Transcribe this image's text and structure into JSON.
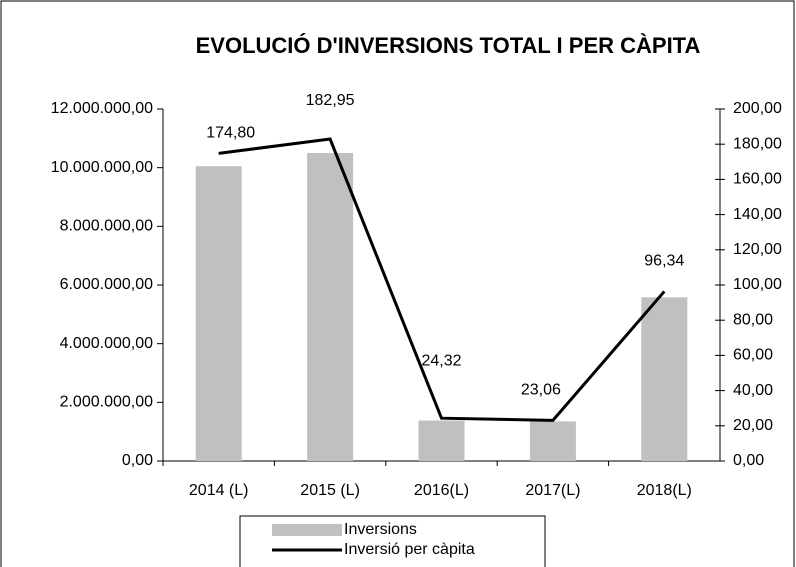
{
  "chart_data": {
    "type": "bar",
    "title": "EVOLUCIÓ D'INVERSIONS TOTAL I PER CÀPITA",
    "categories": [
      "2014 (L)",
      "2015 (L)",
      "2016(L)",
      "2017(L)",
      "2018(L)"
    ],
    "series": [
      {
        "name": "Inversions",
        "type": "bar",
        "color": "#c0c0c0",
        "values": [
          10050000,
          10500000,
          1380000,
          1350000,
          5580000
        ]
      },
      {
        "name": "Inversió per càpita",
        "type": "line",
        "axis": "y2",
        "color": "#000000",
        "values": [
          174.8,
          182.95,
          24.32,
          23.06,
          96.34
        ],
        "value_labels": [
          "174,80",
          "182,95",
          "24,32",
          "23,06",
          "96,34"
        ]
      }
    ],
    "ylim": [
      0,
      12000000
    ],
    "yticks": [
      {
        "value": 0,
        "label": "0,00"
      },
      {
        "value": 2000000,
        "label": "2.000.000,00"
      },
      {
        "value": 4000000,
        "label": "4.000.000,00"
      },
      {
        "value": 6000000,
        "label": "6.000.000,00"
      },
      {
        "value": 8000000,
        "label": "8.000.000,00"
      },
      {
        "value": 10000000,
        "label": "10.000.000,00"
      },
      {
        "value": 12000000,
        "label": "12.000.000,00"
      }
    ],
    "y2lim": [
      0,
      200
    ],
    "y2ticks": [
      {
        "value": 0,
        "label": "0,00"
      },
      {
        "value": 20,
        "label": "20,00"
      },
      {
        "value": 40,
        "label": "40,00"
      },
      {
        "value": 60,
        "label": "60,00"
      },
      {
        "value": 80,
        "label": "80,00"
      },
      {
        "value": 100,
        "label": "100,00"
      },
      {
        "value": 120,
        "label": "120,00"
      },
      {
        "value": 140,
        "label": "140,00"
      },
      {
        "value": 160,
        "label": "160,00"
      },
      {
        "value": 180,
        "label": "180,00"
      },
      {
        "value": 200,
        "label": "200,00"
      }
    ],
    "grid": false,
    "legend": "bottom"
  }
}
